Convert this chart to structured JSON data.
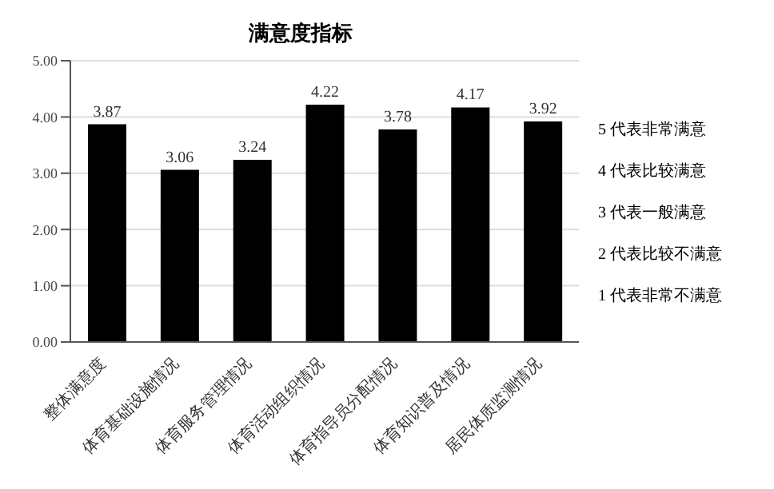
{
  "chart_data": {
    "type": "bar",
    "title": "满意度指标",
    "categories": [
      "整体满意度",
      "体育基础设施情况",
      "体育服务管理情况",
      "体育活动组织情况",
      "体育指导员分配情况",
      "体育知识普及情况",
      "居民体质监测情况"
    ],
    "values": [
      3.87,
      3.06,
      3.24,
      4.22,
      3.78,
      4.17,
      3.92
    ],
    "color": "#000000",
    "data_labels": true,
    "ylim": [
      0,
      5
    ],
    "yticks": [
      {
        "value": 0,
        "label": "0.00"
      },
      {
        "value": 1,
        "label": "1.00"
      },
      {
        "value": 2,
        "label": "2.00"
      },
      {
        "value": 3,
        "label": "3.00"
      },
      {
        "value": 4,
        "label": "4.00"
      },
      {
        "value": 5,
        "label": "5.00"
      }
    ],
    "grid": "y",
    "annotations": [
      "5 代表非常满意",
      "4 代表比较满意",
      "3 代表一般满意",
      "2 代表比较不满意",
      "1 代表非常不满意"
    ]
  }
}
